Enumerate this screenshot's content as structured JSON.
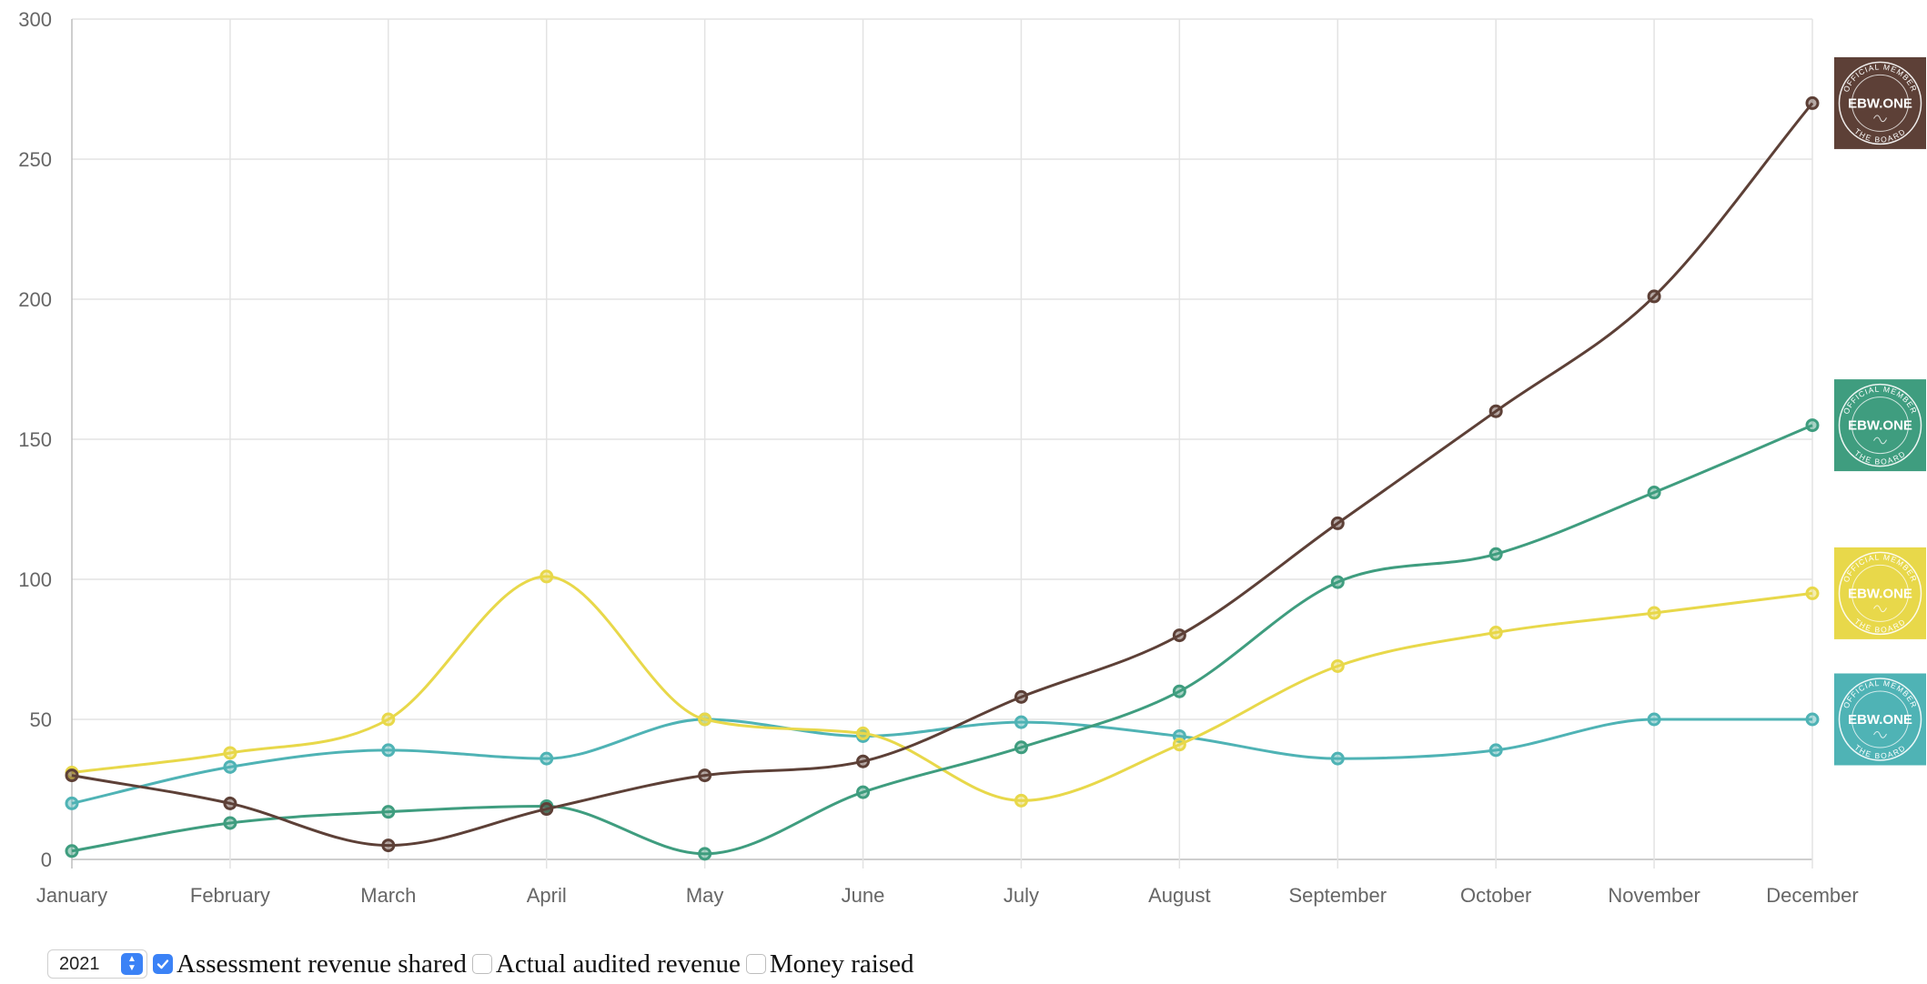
{
  "chart_data": {
    "type": "line",
    "categories": [
      "January",
      "February",
      "March",
      "April",
      "May",
      "June",
      "July",
      "August",
      "September",
      "October",
      "November",
      "December"
    ],
    "ylim": [
      0,
      300
    ],
    "yticks": [
      0,
      50,
      100,
      150,
      200,
      250,
      300
    ],
    "grid": true,
    "series": [
      {
        "color": "#5d4037",
        "values": [
          30,
          20,
          5,
          18,
          30,
          35,
          58,
          80,
          120,
          160,
          201,
          270
        ]
      },
      {
        "color": "#3f9d7f",
        "values": [
          3,
          13,
          17,
          19,
          2,
          24,
          40,
          60,
          99,
          109,
          131,
          155
        ]
      },
      {
        "color": "#e8d84a",
        "values": [
          31,
          38,
          50,
          101,
          50,
          45,
          21,
          41,
          69,
          81,
          88,
          95
        ]
      },
      {
        "color": "#4fb3b5",
        "values": [
          20,
          33,
          39,
          36,
          50,
          44,
          49,
          44,
          36,
          39,
          50,
          50
        ]
      }
    ]
  },
  "badges": [
    {
      "top": "OFFICIAL MEMBER",
      "main": "EBW.ONE",
      "bottom": "THE BOARD",
      "bg": "#5d4037"
    },
    {
      "top": "OFFICIAL MEMBER",
      "main": "EBW.ONE",
      "bottom": "THE BOARD",
      "bg": "#3f9d7f"
    },
    {
      "top": "OFFICIAL MEMBER",
      "main": "EBW.ONE",
      "bottom": "THE BOARD",
      "bg": "#e8d84a"
    },
    {
      "top": "OFFICIAL MEMBER",
      "main": "EBW.ONE",
      "bottom": "THE BOARD",
      "bg": "#4fb3b5"
    }
  ],
  "controls": {
    "year": "2021",
    "checkboxes": [
      {
        "label": "Assessment revenue shared",
        "checked": true
      },
      {
        "label": "Actual audited revenue",
        "checked": false
      },
      {
        "label": "Money raised",
        "checked": false
      }
    ]
  }
}
